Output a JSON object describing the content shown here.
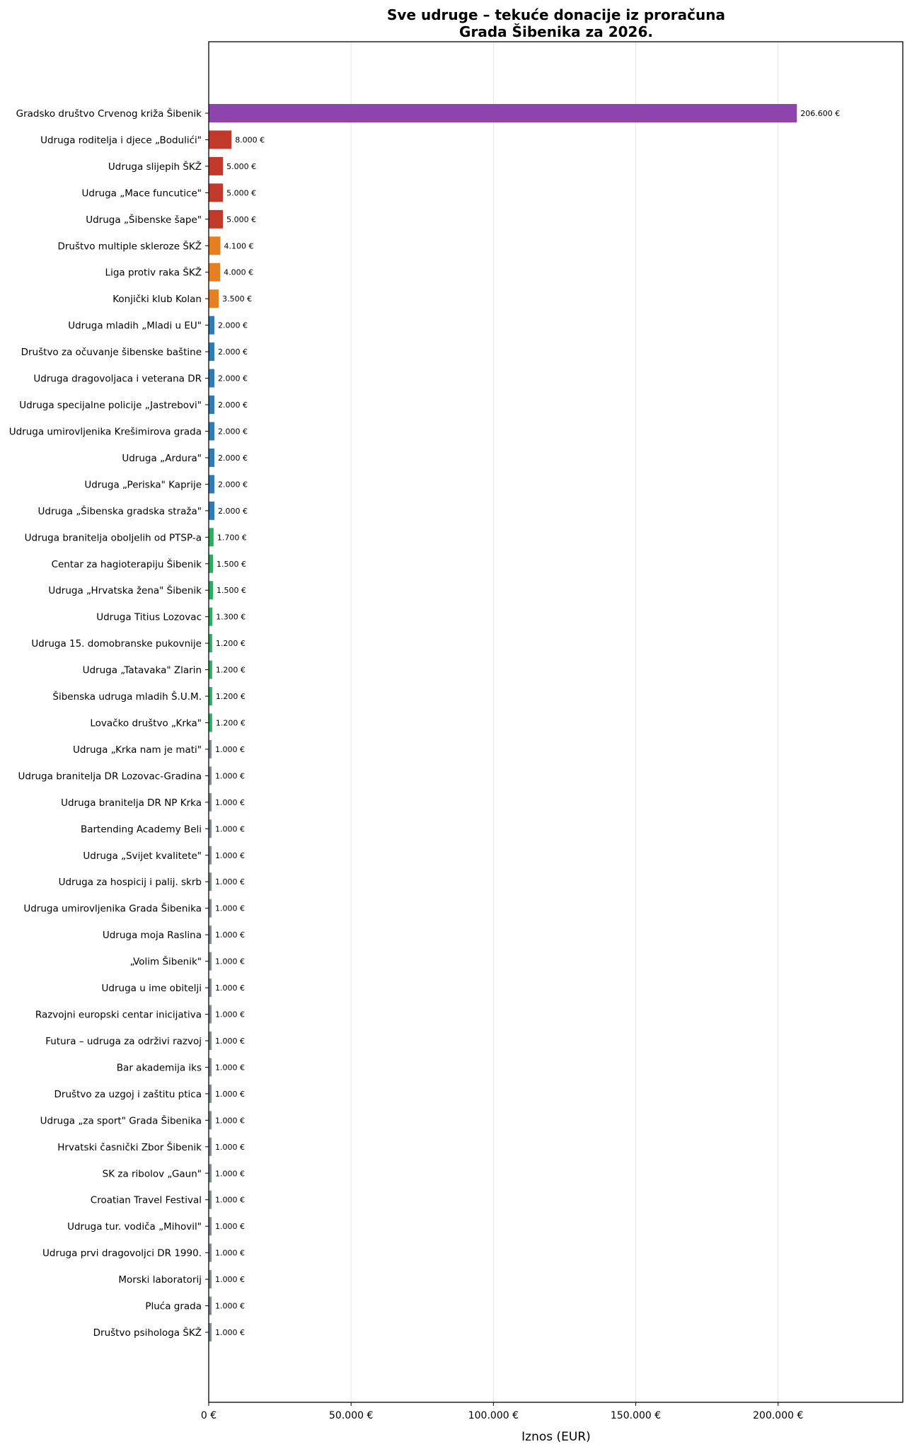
{
  "chart_data": {
    "type": "bar",
    "orientation": "horizontal",
    "title": "Sve udruge – tekuće donacije iz proračuna\nGrada Šibenika za 2026.",
    "title_lines": [
      "Sve udruge – tekuće donacije iz proračuna",
      "Grada Šibenika za 2026."
    ],
    "xlabel": "Iznos (EUR)",
    "ylabel": "",
    "xlim": [
      0,
      243800
    ],
    "xticks": [
      0,
      50000,
      100000,
      150000,
      200000
    ],
    "xtick_labels": [
      "0 €",
      "50.000 €",
      "100.000 €",
      "150.000 €",
      "200.000 €"
    ],
    "grid": "x",
    "colors": {
      "purple": "#8e44ad",
      "red": "#c0392b",
      "orange": "#e67e22",
      "blue": "#2e7bb6",
      "green": "#27ae60",
      "gray": "#7f8c8d"
    },
    "categories": [
      "Gradsko društvo Crvenog križa Šibenik",
      "Udruga roditelja i djece „Bodulići\"",
      "Udruga slijepih ŠKŽ",
      "Udruga „Mace funcutice\"",
      "Udruga „Šibenske šape\"",
      "Društvo multiple skleroze ŠKŽ",
      "Liga protiv raka ŠKŽ",
      "Konjički klub Kolan",
      "Udruga mladih „Mladi u EU\"",
      "Društvo za očuvanje šibenske baštine",
      "Udruga dragovoljaca i veterana DR",
      "Udruga specijalne policije „Jastrebovi\"",
      "Udruga umirovljenika Krešimirova grada",
      "Udruga „Ardura\"",
      "Udruga „Periska\" Kaprije",
      "Udruga „Šibenska gradska straža\"",
      "Udruga branitelja oboljelih od PTSP-a",
      "Centar za hagioterapiju Šibenik",
      "Udruga „Hrvatska žena\" Šibenik",
      "Udruga Titius Lozovac",
      "Udruga 15. domobranske pukovnije",
      "Udruga „Tatavaka\" Zlarin",
      "Šibenska udruga mladih Š.U.M.",
      "Lovačko društvo „Krka\"",
      "Udruga „Krka nam je mati\"",
      "Udruga branitelja DR Lozovac-Gradina",
      "Udruga branitelja DR NP Krka",
      "Bartending Academy Beli",
      "Udruga „Svijet kvalitete\"",
      "Udruga za hospicij i palij. skrb",
      "Udruga umirovljenika Grada Šibenika",
      "Udruga moja Raslina",
      "„Volim Šibenik\"",
      "Udruga u ime obitelji",
      "Razvojni europski centar inicijativa",
      "Futura – udruga za održivi razvoj",
      "Bar akademija iks",
      "Društvo za uzgoj i zaštitu ptica",
      "Udruga „za sport\" Grada Šibenika",
      "Hrvatski časnički Zbor Šibenik",
      "SK za ribolov „Gaun\"",
      "Croatian Travel Festival",
      "Udruga tur. vodiča „Mihovil\"",
      "Udruga prvi dragovoljci DR 1990.",
      "Morski laboratorij",
      "Pluća grada",
      "Društvo psihologa ŠKŽ"
    ],
    "values": [
      206600,
      8000,
      5000,
      5000,
      5000,
      4100,
      4000,
      3500,
      2000,
      2000,
      2000,
      2000,
      2000,
      2000,
      2000,
      2000,
      1700,
      1500,
      1500,
      1300,
      1200,
      1200,
      1200,
      1200,
      1000,
      1000,
      1000,
      1000,
      1000,
      1000,
      1000,
      1000,
      1000,
      1000,
      1000,
      1000,
      1000,
      1000,
      1000,
      1000,
      1000,
      1000,
      1000,
      1000,
      1000,
      1000,
      1000
    ],
    "value_labels": [
      "206.600 €",
      "8.000 €",
      "5.000 €",
      "5.000 €",
      "5.000 €",
      "4.100 €",
      "4.000 €",
      "3.500 €",
      "2.000 €",
      "2.000 €",
      "2.000 €",
      "2.000 €",
      "2.000 €",
      "2.000 €",
      "2.000 €",
      "2.000 €",
      "1.700 €",
      "1.500 €",
      "1.500 €",
      "1.300 €",
      "1.200 €",
      "1.200 €",
      "1.200 €",
      "1.200 €",
      "1.000 €",
      "1.000 €",
      "1.000 €",
      "1.000 €",
      "1.000 €",
      "1.000 €",
      "1.000 €",
      "1.000 €",
      "1.000 €",
      "1.000 €",
      "1.000 €",
      "1.000 €",
      "1.000 €",
      "1.000 €",
      "1.000 €",
      "1.000 €",
      "1.000 €",
      "1.000 €",
      "1.000 €",
      "1.000 €",
      "1.000 €",
      "1.000 €",
      "1.000 €"
    ]
  }
}
